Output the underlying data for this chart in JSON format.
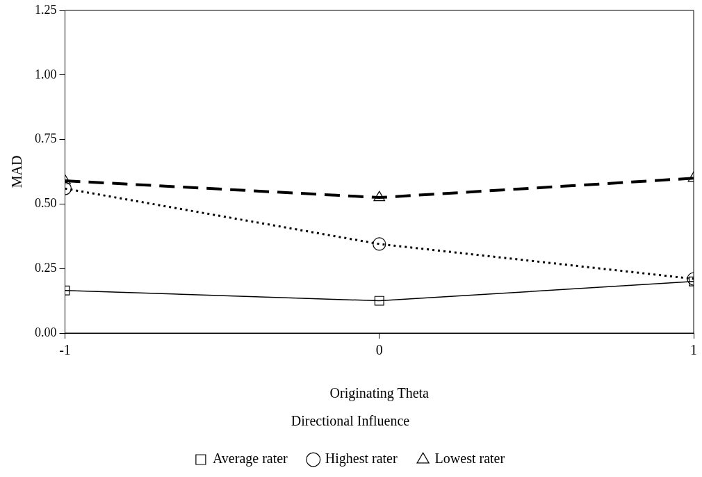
{
  "chart_data": {
    "type": "line",
    "xlabel": "Originating Theta",
    "ylabel": "MAD",
    "legend_title": "Directional Influence",
    "x": [
      -1,
      0,
      1
    ],
    "series": [
      {
        "name": "Average rater",
        "color": "#000000",
        "values": [
          0.165,
          0.125,
          0.2
        ],
        "marker": "square",
        "line_style": "solid"
      },
      {
        "name": "Highest rater",
        "color": "#000000",
        "values": [
          0.56,
          0.345,
          0.21
        ],
        "marker": "circle",
        "line_style": "dotted"
      },
      {
        "name": "Lowest rater",
        "color": "#000000",
        "values": [
          0.59,
          0.525,
          0.6
        ],
        "marker": "triangle",
        "line_style": "dashed"
      }
    ],
    "xlim": [
      -1,
      1
    ],
    "xticks": [
      -1,
      0,
      1
    ],
    "ylim": [
      0,
      1.25
    ],
    "yticks": [
      {
        "value": 0,
        "label": "0.00"
      },
      0.25,
      {
        "value": 0.5,
        "label": "0.50"
      },
      0.75,
      {
        "value": 1,
        "label": "1.00"
      },
      1.25
    ],
    "grid": false,
    "legend": "bottom"
  }
}
